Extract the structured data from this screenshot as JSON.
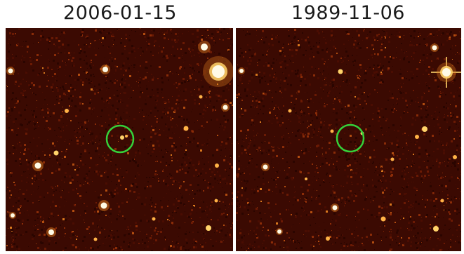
{
  "left_panel": {
    "date": "2006-01-15"
  },
  "right_panel": {
    "date": "1989-11-06"
  },
  "marker_color": "#35d13a",
  "noise_colors": [
    "#2a0500",
    "#4a0d02",
    "#6a1a04",
    "#8a2c08",
    "#b24d10",
    "#d8781e"
  ],
  "star_colors": {
    "core": "#fffbe6",
    "mid": "#ffd36a",
    "halo": "#e07a1c"
  }
}
